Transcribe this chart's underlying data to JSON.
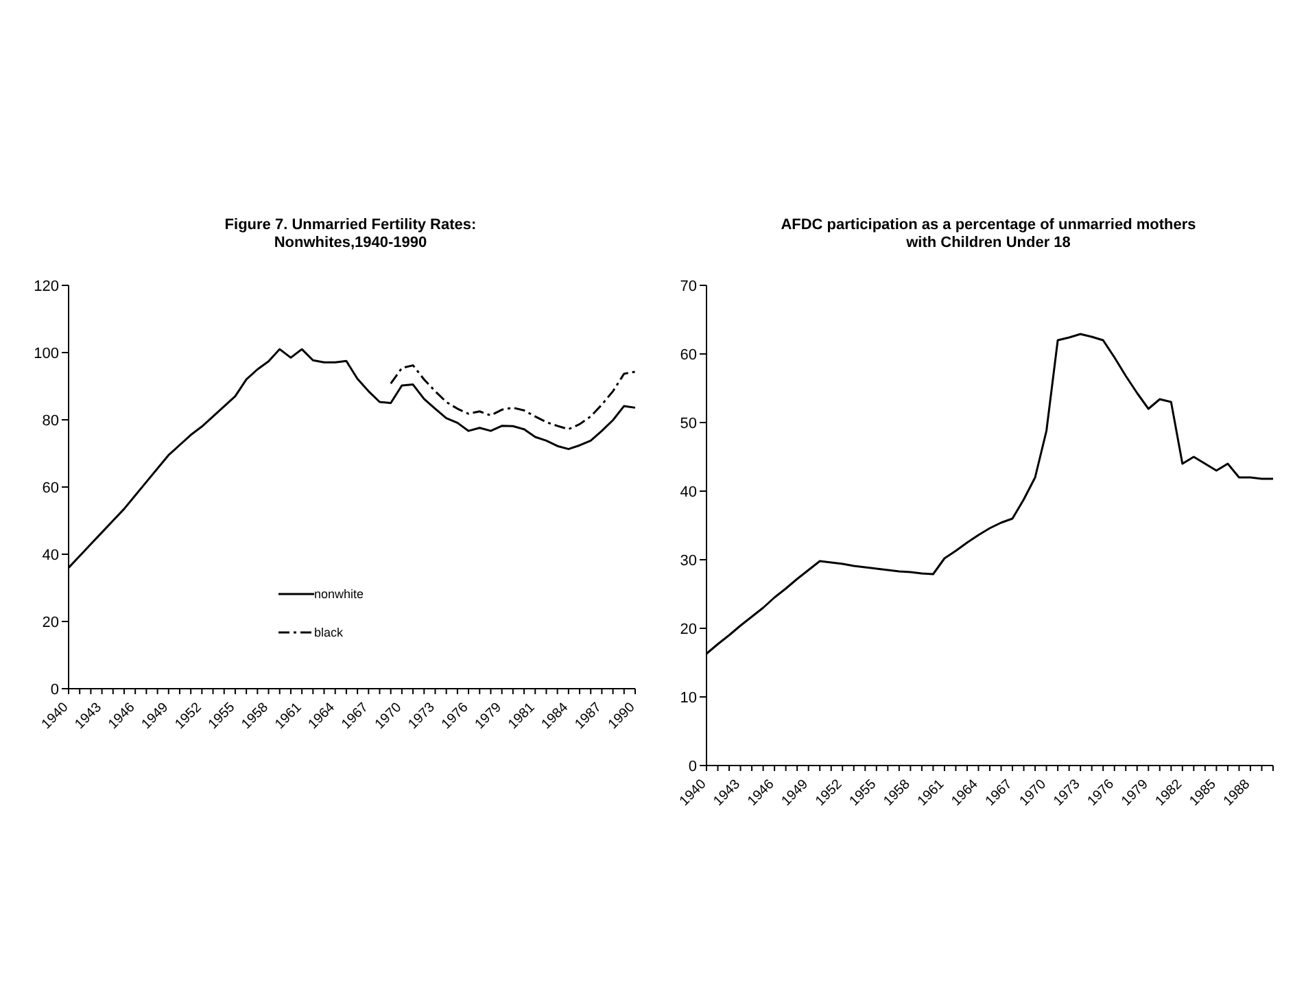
{
  "chart_data": [
    {
      "type": "line",
      "title": "Figure 7. Unmarried Fertility Rates:\nNonwhites,1940-1990",
      "categories": [
        "1940",
        null,
        null,
        "1943",
        null,
        null,
        "1946",
        null,
        null,
        "1949",
        null,
        null,
        "1952",
        null,
        null,
        "1955",
        null,
        null,
        "1958",
        null,
        null,
        "1961",
        null,
        null,
        "1964",
        null,
        null,
        "1967",
        null,
        null,
        "1970",
        null,
        null,
        "1973",
        null,
        null,
        "1976",
        null,
        null,
        "1979",
        null,
        null,
        "1981",
        null,
        null,
        "1984",
        null,
        null,
        "1987",
        null,
        null,
        "1990"
      ],
      "series": [
        {
          "name": "nonwhite",
          "color": "#000000",
          "line_style": "solid",
          "values": [
            36,
            39.5,
            43,
            46.5,
            50,
            53.5,
            57.5,
            61.5,
            65.5,
            69.5,
            72.5,
            75.5,
            78,
            81,
            84,
            87,
            92,
            95,
            97.4,
            101,
            98.5,
            101,
            97.7,
            97.1,
            97.1,
            97.5,
            92.2,
            88.5,
            85.3,
            85,
            90.2,
            90.5,
            86.2,
            83.3,
            80.5,
            79.1,
            76.7,
            77.6,
            76.7,
            78.2,
            78.1,
            77.2,
            74.9,
            73.8,
            72.2,
            71.3,
            72.4,
            73.8,
            76.7,
            79.9,
            84.1,
            83.6
          ]
        },
        {
          "name": "black",
          "color": "#000000",
          "line_style": "dashed",
          "values": [
            null,
            null,
            null,
            null,
            null,
            null,
            null,
            null,
            null,
            null,
            null,
            null,
            null,
            null,
            null,
            null,
            null,
            null,
            null,
            null,
            null,
            null,
            null,
            null,
            null,
            null,
            null,
            null,
            null,
            90.8,
            95.4,
            96.2,
            92,
            88.5,
            85.3,
            83.3,
            81.8,
            82.5,
            81.3,
            83,
            83.6,
            82.8,
            81,
            79.3,
            78.2,
            77.2,
            78.7,
            81,
            84.5,
            88.5,
            93.7,
            94.3
          ]
        }
      ],
      "ylim": [
        0,
        120
      ],
      "yticks": [
        0,
        20,
        40,
        60,
        80,
        100,
        120
      ],
      "legend": "center",
      "marker": "none"
    },
    {
      "type": "line",
      "title": "AFDC participation as a percentage of unmarried mothers\nwith Children Under 18",
      "categories": [
        "1940",
        null,
        null,
        "1943",
        null,
        null,
        "1946",
        null,
        null,
        "1949",
        null,
        null,
        "1952",
        null,
        null,
        "1955",
        null,
        null,
        "1958",
        null,
        null,
        "1961",
        null,
        null,
        "1964",
        null,
        null,
        "1967",
        null,
        null,
        "1970",
        null,
        null,
        "1973",
        null,
        null,
        "1976",
        null,
        null,
        "1979",
        null,
        null,
        "1982",
        null,
        null,
        "1985",
        null,
        null,
        "1988",
        null,
        null
      ],
      "series": [
        {
          "color": "#000000",
          "line_style": "solid",
          "values": [
            16.3,
            17.7,
            19,
            20.4,
            21.7,
            23,
            24.5,
            25.8,
            27.2,
            28.5,
            29.8,
            29.6,
            29.4,
            29.1,
            28.9,
            28.7,
            28.5,
            28.3,
            28.2,
            28,
            27.9,
            30.2,
            31.3,
            32.5,
            33.6,
            34.6,
            35.4,
            36,
            38.8,
            42,
            48.8,
            62,
            62.4,
            62.9,
            62.5,
            62,
            59.5,
            56.8,
            54.3,
            52,
            53.4,
            53,
            44,
            45,
            44,
            43,
            44,
            42,
            42,
            41.8,
            41.8
          ]
        }
      ],
      "ylim": [
        0,
        70
      ],
      "yticks": [
        0,
        10,
        20,
        30,
        40,
        50,
        60,
        70
      ],
      "legend": false,
      "marker": "none"
    }
  ]
}
